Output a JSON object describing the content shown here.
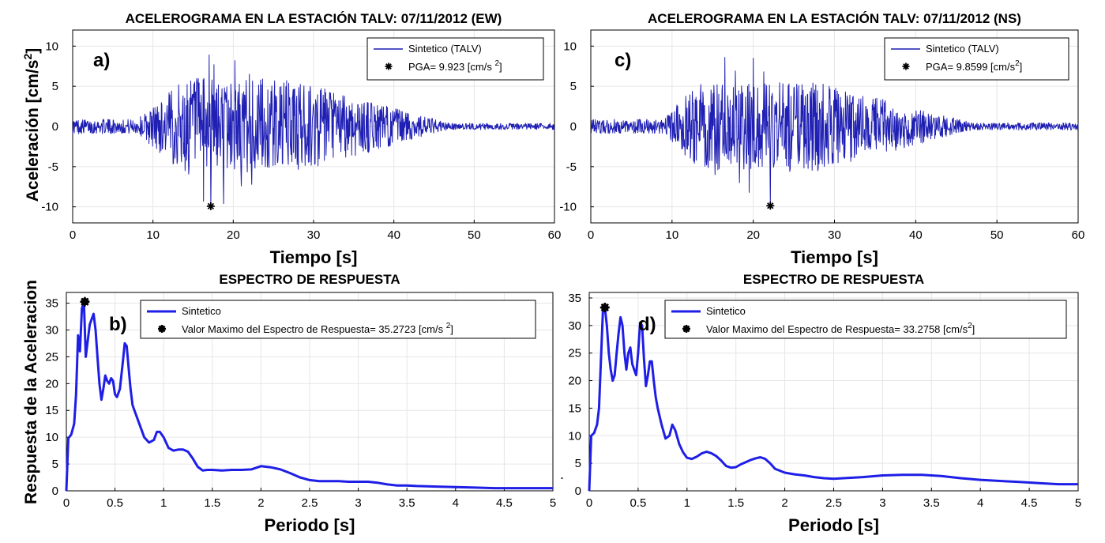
{
  "figure": {
    "ylabel_top": "Aceleración [cm/s2]",
    "ylabel_top_unit_base": "Aceleración [cm/s",
    "ylabel_top_unit_sup": "2",
    "ylabel_top_unit_end": "]",
    "ylabel_bottom": "Respuesta de la Aceleracion",
    "stray_mark": "."
  },
  "chart_data": [
    {
      "id": "a",
      "letter": "a)",
      "type": "line",
      "title": "ACELEROGRAMA EN LA ESTACIÓN TALV: 07/11/2012 (EW)",
      "xlabel": "Tiempo [s]",
      "xlim": [
        0,
        60
      ],
      "ylim": [
        -12,
        12
      ],
      "xticks": [
        "0",
        "10",
        "20",
        "30",
        "40",
        "50",
        "60"
      ],
      "yticks": [
        "10",
        "5",
        "0",
        "-5",
        "-10"
      ],
      "grid": true,
      "legend_placement": "top-right",
      "series": [
        {
          "name": "Sintetico (TALV)",
          "color": "#1f1fb4"
        }
      ],
      "peak": {
        "label": "PGA= 9.923 [cm/s 2]",
        "label_base": "PGA= 9.923 [cm/s ",
        "label_sup": "2",
        "label_end": "]",
        "x": 17.2,
        "y": -9.923,
        "marker": "asterisk"
      },
      "signal_envelope": {
        "start": 0,
        "pre_level": 0.9,
        "ramp_start": 8,
        "peak_start": 14,
        "peak_end": 27,
        "decay_end": 47,
        "peak_level": 6.0,
        "post_level": 0.4,
        "sample_step": 0.05
      },
      "spikes": [
        {
          "x": 17.0,
          "y": 8.9
        },
        {
          "x": 17.2,
          "y": -9.923
        },
        {
          "x": 16.3,
          "y": -9.3
        },
        {
          "x": 17.6,
          "y": 7.7
        },
        {
          "x": 18.8,
          "y": -9.6
        },
        {
          "x": 20.2,
          "y": 8.2
        },
        {
          "x": 21.0,
          "y": -7.4
        },
        {
          "x": 22.0,
          "y": 6.5
        },
        {
          "x": 22.3,
          "y": -7.2
        },
        {
          "x": 14.0,
          "y": -5.5
        },
        {
          "x": 15.1,
          "y": 5.3
        },
        {
          "x": 25.8,
          "y": 4.9
        },
        {
          "x": 24.0,
          "y": -5.0
        }
      ]
    },
    {
      "id": "c",
      "letter": "c)",
      "type": "line",
      "title": "ACELEROGRAMA EN LA ESTACIÓN TALV: 07/11/2012 (NS)",
      "xlabel": "Tiempo [s]",
      "xlim": [
        0,
        60
      ],
      "ylim": [
        -12,
        12
      ],
      "xticks": [
        "0",
        "10",
        "20",
        "30",
        "40",
        "50",
        "60"
      ],
      "yticks": [
        "10",
        "5",
        "0",
        "-5",
        "-10"
      ],
      "grid": true,
      "legend_placement": "top-right",
      "series": [
        {
          "name": "Sintetico (TALV)",
          "color": "#1f1fb4"
        }
      ],
      "peak": {
        "label": "PGA= 9.8599 [cm/s2]",
        "label_base": "PGA= 9.8599 [cm/s",
        "label_sup": "2",
        "label_end": "]",
        "x": 22.1,
        "y": -9.8599,
        "marker": "asterisk"
      },
      "signal_envelope": {
        "start": 0,
        "pre_level": 0.9,
        "ramp_start": 9,
        "peak_start": 13,
        "peak_end": 28,
        "decay_end": 47,
        "peak_level": 5.5,
        "post_level": 0.45,
        "sample_step": 0.05
      },
      "spikes": [
        {
          "x": 16.5,
          "y": 8.6
        },
        {
          "x": 20.0,
          "y": 8.5
        },
        {
          "x": 22.1,
          "y": -9.86
        },
        {
          "x": 19.5,
          "y": -8.2
        },
        {
          "x": 18.3,
          "y": -7.0
        },
        {
          "x": 21.3,
          "y": 6.8
        },
        {
          "x": 15.3,
          "y": -6.0
        },
        {
          "x": 17.8,
          "y": 6.9
        },
        {
          "x": 24.5,
          "y": -5.6
        },
        {
          "x": 26.0,
          "y": 5.2
        },
        {
          "x": 13.5,
          "y": 3.9
        }
      ]
    },
    {
      "id": "b",
      "letter": "b)",
      "type": "line",
      "title": "ESPECTRO DE RESPUESTA",
      "xlabel": "Periodo [s]",
      "xlim": [
        0,
        5
      ],
      "ylim": [
        0,
        37
      ],
      "xticks": [
        "0",
        "0.5",
        "1",
        "1.5",
        "2",
        "2.5",
        "3",
        "3.5",
        "4",
        "4.5",
        "5"
      ],
      "yticks": [
        "35",
        "30",
        "25",
        "20",
        "15",
        "10",
        "5",
        "0"
      ],
      "grid": true,
      "legend_placement": "top-right",
      "series": [
        {
          "name": "Sintetico",
          "color": "#1e1ee6",
          "x": [
            0,
            0.02,
            0.05,
            0.08,
            0.1,
            0.12,
            0.14,
            0.16,
            0.18,
            0.2,
            0.22,
            0.24,
            0.26,
            0.28,
            0.3,
            0.32,
            0.34,
            0.36,
            0.38,
            0.4,
            0.42,
            0.44,
            0.46,
            0.48,
            0.5,
            0.52,
            0.55,
            0.58,
            0.6,
            0.62,
            0.64,
            0.66,
            0.68,
            0.7,
            0.75,
            0.8,
            0.85,
            0.9,
            0.93,
            0.96,
            1.0,
            1.05,
            1.1,
            1.15,
            1.2,
            1.25,
            1.3,
            1.35,
            1.4,
            1.45,
            1.5,
            1.6,
            1.7,
            1.8,
            1.9,
            2.0,
            2.05,
            2.1,
            2.2,
            2.3,
            2.4,
            2.5,
            2.6,
            2.7,
            2.8,
            2.9,
            3.0,
            3.1,
            3.2,
            3.3,
            3.4,
            3.5,
            3.6,
            3.8,
            4.0,
            4.2,
            4.4,
            4.6,
            4.8,
            5.0
          ],
          "values": [
            0,
            9.8,
            10.5,
            12.5,
            18,
            29,
            26,
            34,
            35.27,
            25,
            28,
            31,
            32,
            33,
            30,
            25,
            20,
            17,
            19,
            21.5,
            20.5,
            20,
            21,
            20.5,
            18,
            17.5,
            19,
            24,
            27.5,
            27,
            23,
            19,
            16,
            15,
            12.5,
            10,
            9,
            9.5,
            11,
            11,
            10,
            8,
            7.5,
            7.7,
            7.7,
            7.3,
            6,
            4.5,
            3.8,
            3.9,
            3.9,
            3.8,
            3.9,
            3.9,
            4,
            4.6,
            4.5,
            4.4,
            4,
            3.3,
            2.5,
            2,
            1.8,
            1.8,
            1.8,
            1.7,
            1.7,
            1.7,
            1.5,
            1.2,
            1,
            1,
            0.9,
            0.8,
            0.7,
            0.6,
            0.5,
            0.5,
            0.5,
            0.5
          ]
        }
      ],
      "peak": {
        "label": "Valor Maximo del Espectro de Respuesta= 35.2723 [cm/s  2]",
        "label_base": "Valor Maximo del Espectro de Respuesta= 35.2723 [cm/s  ",
        "label_sup": "2",
        "label_end": "]",
        "x": 0.19,
        "y": 35.2723,
        "marker": "star"
      }
    },
    {
      "id": "d",
      "letter": "d)",
      "type": "line",
      "title": "ESPECTRO DE RESPUESTA",
      "xlabel": "Periodo [s]",
      "xlim": [
        0,
        5
      ],
      "ylim": [
        0,
        36
      ],
      "xticks": [
        "0",
        "0.5",
        "1",
        "1.5",
        "2",
        "2.5",
        "3",
        "3.5",
        "4",
        "4.5",
        "5"
      ],
      "yticks": [
        "35",
        "30",
        "25",
        "20",
        "15",
        "10",
        "5",
        "0"
      ],
      "grid": true,
      "legend_placement": "top-right",
      "series": [
        {
          "name": "Sintetico",
          "color": "#1e1ee6",
          "x": [
            0,
            0.02,
            0.05,
            0.08,
            0.1,
            0.12,
            0.14,
            0.16,
            0.18,
            0.2,
            0.22,
            0.24,
            0.26,
            0.28,
            0.3,
            0.32,
            0.34,
            0.36,
            0.38,
            0.4,
            0.42,
            0.44,
            0.46,
            0.48,
            0.5,
            0.52,
            0.54,
            0.56,
            0.58,
            0.6,
            0.62,
            0.64,
            0.66,
            0.68,
            0.7,
            0.74,
            0.78,
            0.82,
            0.85,
            0.88,
            0.92,
            0.96,
            1.0,
            1.05,
            1.1,
            1.15,
            1.2,
            1.25,
            1.3,
            1.35,
            1.4,
            1.45,
            1.5,
            1.55,
            1.6,
            1.65,
            1.7,
            1.75,
            1.8,
            1.85,
            1.9,
            2.0,
            2.1,
            2.2,
            2.3,
            2.4,
            2.5,
            2.6,
            2.8,
            3.0,
            3.2,
            3.4,
            3.6,
            3.8,
            4.0,
            4.2,
            4.4,
            4.6,
            4.8,
            5.0
          ],
          "values": [
            0,
            10,
            10.5,
            12,
            15,
            24,
            32.5,
            33.28,
            30,
            25,
            22,
            20,
            21,
            25,
            28.5,
            31.5,
            30,
            25,
            22,
            25,
            26,
            23,
            22,
            21,
            25,
            30.5,
            30,
            24,
            19,
            21,
            23.5,
            23.5,
            20,
            17,
            15,
            12,
            9.5,
            10,
            12,
            11,
            8.5,
            7,
            6,
            5.8,
            6.2,
            6.8,
            7.1,
            6.8,
            6.3,
            5.5,
            4.5,
            4.2,
            4.3,
            4.8,
            5.2,
            5.6,
            5.9,
            6.1,
            5.8,
            5,
            4,
            3.3,
            3,
            2.8,
            2.5,
            2.3,
            2.2,
            2.3,
            2.5,
            2.8,
            2.9,
            2.9,
            2.7,
            2.3,
            2,
            1.8,
            1.6,
            1.4,
            1.2,
            1.2
          ]
        }
      ],
      "peak": {
        "label": "Valor Maximo del Espectro de Respuesta= 33.2758 [cm/s2]",
        "label_base": "Valor Maximo del Espectro de Respuesta= 33.2758 [cm/s",
        "label_sup": "2",
        "label_end": "]",
        "x": 0.16,
        "y": 33.2758,
        "marker": "star"
      }
    }
  ]
}
